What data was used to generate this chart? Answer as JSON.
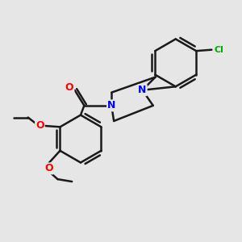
{
  "background_color": "#e6e6e6",
  "bond_color": "#1a1a1a",
  "bond_width": 1.8,
  "N_color": "#0000ff",
  "O_color": "#ff0000",
  "Cl_color": "#00aa00",
  "figsize": [
    3.0,
    3.0
  ],
  "dpi": 100,
  "xlim": [
    0,
    10
  ],
  "ylim": [
    0,
    10
  ]
}
